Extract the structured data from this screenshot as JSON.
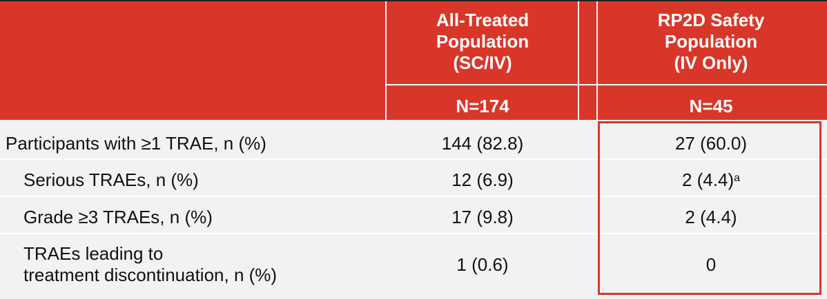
{
  "header": {
    "col2_line1": "All-Treated",
    "col2_line2": "Population",
    "col2_line3": "(SC/IV)",
    "col3_line1": "RP2D Safety",
    "col3_line2": "Population",
    "col3_line3": "(IV Only)",
    "col2_n": "N=174",
    "col3_n": "N=45"
  },
  "rows": [
    {
      "label": "Participants with ≥1 TRAE, n (%)",
      "v1": "144 (82.8)",
      "v2": "27 (60.0)"
    },
    {
      "label": "Serious TRAEs, n (%)",
      "v1": "12 (6.9)",
      "v2": "2 (4.4)",
      "v2_sup": "a"
    },
    {
      "label": "Grade ≥3 TRAEs, n (%)",
      "v1": "17 (9.8)",
      "v2": "2 (4.4)"
    },
    {
      "label_line1": "TRAEs leading to",
      "label_line2": "treatment discontinuation, n (%)",
      "v1": "1 (0.6)",
      "v2": "0"
    }
  ],
  "colors": {
    "header_bg": "#d9362a",
    "highlight_border": "#d9362a"
  }
}
